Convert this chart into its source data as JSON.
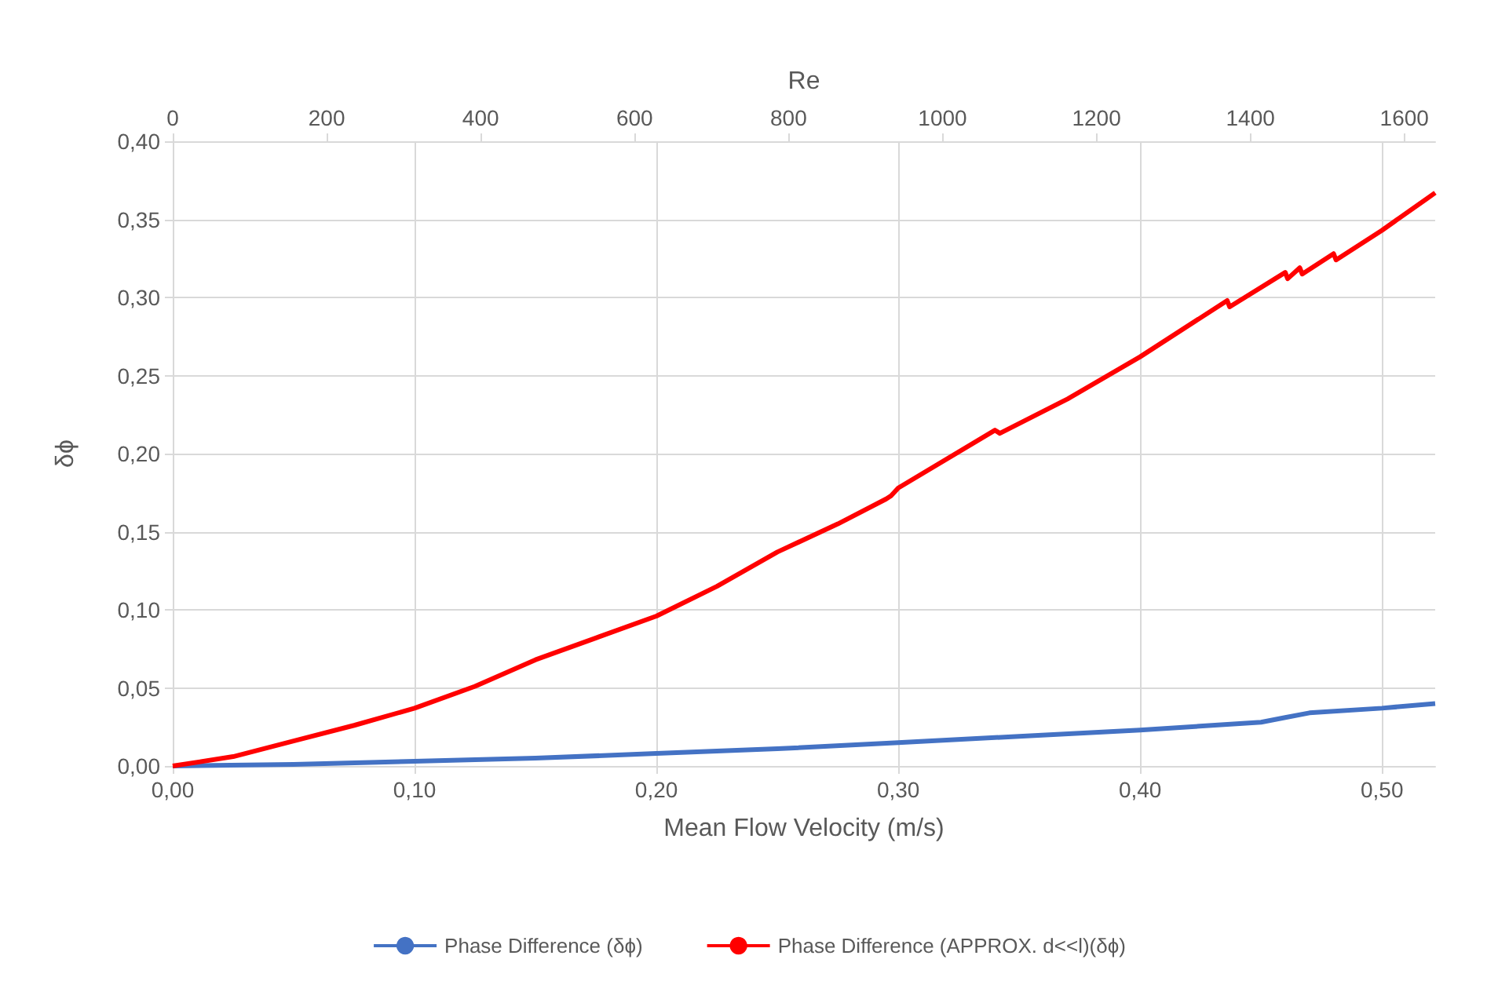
{
  "chart_data": {
    "type": "line",
    "xlabel": "Mean Flow Velocity (m/s)",
    "ylabel": "δϕ",
    "x2label": "Re",
    "xlim": [
      0,
      0.522
    ],
    "xticks": [
      {
        "value": 0,
        "label": "0,00"
      },
      {
        "value": 0.1,
        "label": "0,10"
      },
      {
        "value": 0.2,
        "label": "0,20"
      },
      {
        "value": 0.3,
        "label": "0,30"
      },
      {
        "value": 0.4,
        "label": "0,40"
      },
      {
        "value": 0.5,
        "label": "0,50"
      }
    ],
    "x2lim": [
      0,
      1640
    ],
    "x2ticks": [
      0,
      200,
      400,
      600,
      800,
      1000,
      1200,
      1400,
      1600
    ],
    "ylim": [
      0,
      0.4
    ],
    "yticks": [
      {
        "value": 0,
        "label": "0,00"
      },
      {
        "value": 0.05,
        "label": "0,05"
      },
      {
        "value": 0.1,
        "label": "0,10"
      },
      {
        "value": 0.15,
        "label": "0,15"
      },
      {
        "value": 0.2,
        "label": "0,20"
      },
      {
        "value": 0.25,
        "label": "0,25"
      },
      {
        "value": 0.3,
        "label": "0,30"
      },
      {
        "value": 0.35,
        "label": "0,35"
      },
      {
        "value": 0.4,
        "label": "0,40"
      }
    ],
    "grid": true,
    "legend": "bottom",
    "marker": "none",
    "line_style": "solid",
    "series": [
      {
        "name": "Phase Difference (δϕ)",
        "color": "#4472c4",
        "x": [
          0,
          0.05,
          0.1,
          0.15,
          0.2,
          0.25,
          0.3,
          0.35,
          0.4,
          0.45,
          0.46,
          0.47,
          0.5,
          0.522
        ],
        "values": [
          0,
          0.001,
          0.003,
          0.005,
          0.008,
          0.011,
          0.015,
          0.019,
          0.023,
          0.028,
          0.031,
          0.034,
          0.037,
          0.04
        ]
      },
      {
        "name": "Phase Difference (APPROX. d<<l)(δϕ)",
        "color": "#ff0000",
        "x": [
          0,
          0.025,
          0.05,
          0.075,
          0.1,
          0.125,
          0.15,
          0.175,
          0.2,
          0.225,
          0.25,
          0.275,
          0.295,
          0.297,
          0.3,
          0.34,
          0.342,
          0.37,
          0.4,
          0.436,
          0.437,
          0.46,
          0.461,
          0.466,
          0.467,
          0.48,
          0.481,
          0.5,
          0.522
        ],
        "values": [
          0,
          0.006,
          0.016,
          0.026,
          0.037,
          0.051,
          0.068,
          0.082,
          0.096,
          0.115,
          0.137,
          0.155,
          0.171,
          0.173,
          0.178,
          0.215,
          0.213,
          0.235,
          0.262,
          0.298,
          0.294,
          0.316,
          0.312,
          0.319,
          0.315,
          0.328,
          0.324,
          0.343,
          0.367
        ]
      }
    ]
  }
}
